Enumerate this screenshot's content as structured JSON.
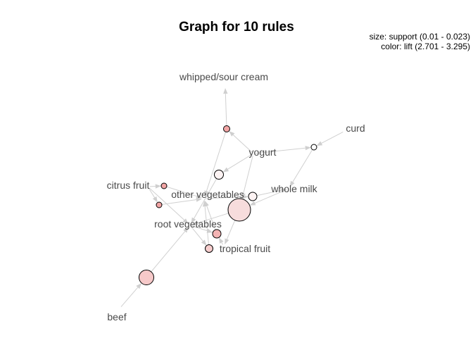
{
  "title": "Graph for 10 rules",
  "legend": {
    "size": "size: support (0.01 - 0.023)",
    "color": "color: lift (2.701 - 3.295)"
  },
  "items": [
    {
      "id": "whipped_sour_cream",
      "label": "whipped/sour cream"
    },
    {
      "id": "curd",
      "label": "curd"
    },
    {
      "id": "yogurt",
      "label": "yogurt"
    },
    {
      "id": "citrus_fruit",
      "label": "citrus fruit"
    },
    {
      "id": "whole_milk",
      "label": "whole milk"
    },
    {
      "id": "other_vegetables",
      "label": "other vegetables"
    },
    {
      "id": "root_vegetables",
      "label": "root vegetables"
    },
    {
      "id": "tropical_fruit",
      "label": "tropical fruit"
    },
    {
      "id": "beef",
      "label": "beef"
    }
  ],
  "rules": [
    {
      "id": "r1",
      "fill": "#f2a5a5"
    },
    {
      "id": "r2",
      "fill": "#ffffff"
    },
    {
      "id": "r3",
      "fill": "#fdf3f3"
    },
    {
      "id": "r4",
      "fill": "#f2a5a5"
    },
    {
      "id": "r5",
      "fill": "#f2a5a5"
    },
    {
      "id": "r6",
      "fill": "#fdf3f3"
    },
    {
      "id": "r7",
      "fill": "#f7dcdc"
    },
    {
      "id": "r8",
      "fill": "#f3b3b3"
    },
    {
      "id": "r9",
      "fill": "#f6cdcd"
    },
    {
      "id": "r10",
      "fill": "#f6c9c9"
    }
  ],
  "edges": [
    {
      "from": "yogurt",
      "to": "r1"
    },
    {
      "from": "r1",
      "to": "whipped_sour_cream"
    },
    {
      "from": "curd",
      "to": "r2"
    },
    {
      "from": "yogurt",
      "to": "r2"
    },
    {
      "from": "r2",
      "to": "whole_milk"
    },
    {
      "from": "r1",
      "to": "other_vegetables"
    },
    {
      "from": "yogurt",
      "to": "r3"
    },
    {
      "from": "r3",
      "to": "root_vegetables"
    },
    {
      "from": "citrus_fruit",
      "to": "r4"
    },
    {
      "from": "r4",
      "to": "other_vegetables"
    },
    {
      "from": "citrus_fruit",
      "to": "r5"
    },
    {
      "from": "r5",
      "to": "other_vegetables"
    },
    {
      "from": "citrus_fruit",
      "to": "root_vegetables"
    },
    {
      "from": "yogurt",
      "to": "r7"
    },
    {
      "from": "whole_milk",
      "to": "r7"
    },
    {
      "from": "r7",
      "to": "root_vegetables"
    },
    {
      "from": "r7",
      "to": "tropical_fruit"
    },
    {
      "from": "other_vegetables",
      "to": "r6"
    },
    {
      "from": "r6",
      "to": "whole_milk"
    },
    {
      "from": "root_vegetables",
      "to": "r8"
    },
    {
      "from": "r8",
      "to": "other_vegetables"
    },
    {
      "from": "tropical_fruit",
      "to": "r8"
    },
    {
      "from": "root_vegetables",
      "to": "r9"
    },
    {
      "from": "r9",
      "to": "other_vegetables"
    },
    {
      "from": "beef",
      "to": "r10"
    },
    {
      "from": "r10",
      "to": "root_vegetables"
    }
  ]
}
